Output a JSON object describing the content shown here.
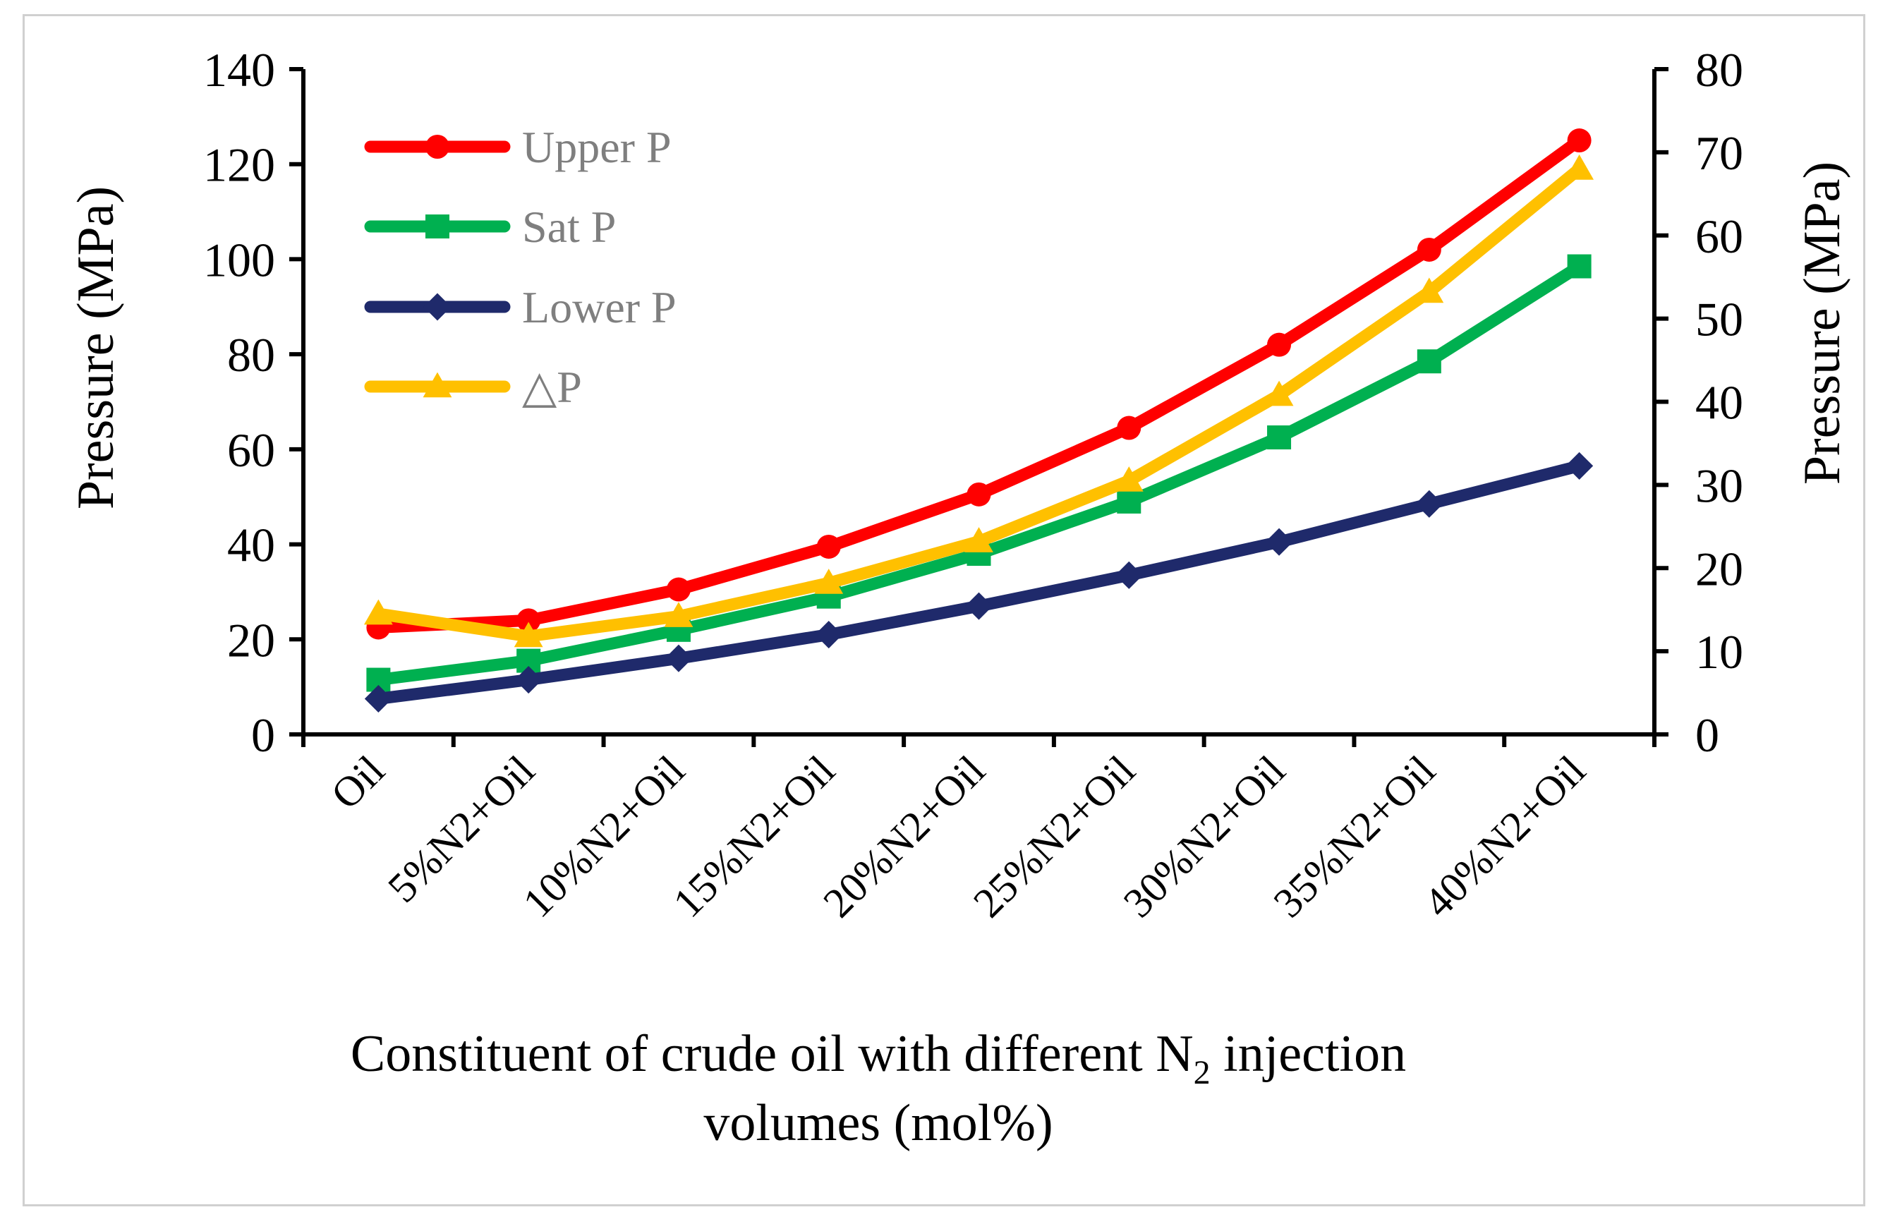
{
  "chart_data": {
    "type": "line",
    "categories": [
      "Oil",
      "5%N2+Oil",
      "10%N2+Oil",
      "15%N2+Oil",
      "20%N2+Oil",
      "25%N2+Oil",
      "30%N2+Oil",
      "35%N2+Oil",
      "40%N2+Oil"
    ],
    "series": [
      {
        "name": "Upper P",
        "axis": "left",
        "color": "#ff0000",
        "marker": "circle",
        "values": [
          22.5,
          24,
          30.5,
          39.5,
          50.5,
          64.5,
          82,
          102,
          125
        ]
      },
      {
        "name": "Sat P",
        "axis": "left",
        "color": "#00b050",
        "marker": "square",
        "values": [
          11.5,
          15.5,
          22,
          29,
          38,
          49,
          62.5,
          78.5,
          98.5
        ]
      },
      {
        "name": "Lower P",
        "axis": "left",
        "color": "#1f2a6b",
        "marker": "diamond",
        "values": [
          7.5,
          11.5,
          16,
          21,
          27,
          33.5,
          40.5,
          48.5,
          56.5
        ]
      },
      {
        "name": "△P",
        "axis": "right",
        "color": "#ffc000",
        "marker": "triangle",
        "values": [
          14.5,
          11.8,
          14.2,
          18.2,
          23.2,
          30.5,
          40.8,
          53.2,
          68
        ]
      }
    ],
    "y_left": {
      "label": "Pressure (MPa)",
      "min": 0,
      "max": 140,
      "ticks": [
        0,
        20,
        40,
        60,
        80,
        100,
        120,
        140
      ]
    },
    "y_right": {
      "label": "Pressure (MPa)",
      "min": 0,
      "max": 80,
      "ticks": [
        0,
        10,
        20,
        30,
        40,
        50,
        60,
        70,
        80
      ]
    },
    "xlabel": {
      "line1_before": "Constituent of crude oil with different N",
      "subscript": "2",
      "line1_after": " injection",
      "line2": "volumes (mol%)"
    },
    "legend_position": "top-left",
    "grid": false
  }
}
